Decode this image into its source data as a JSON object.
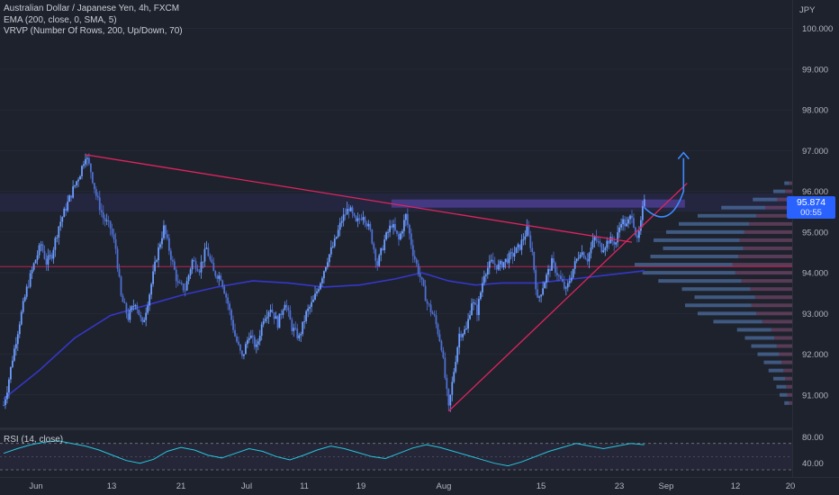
{
  "header": {
    "title": "Australian Dollar / Japanese Yen, 4h, FXCM",
    "indicator_ema": "EMA (200, close, 0, SMA, 5)",
    "indicator_vrvp": "VRVP (Number Of Rows, 200, Up/Down, 70)"
  },
  "price_scale": {
    "currency": "JPY",
    "last_price": "95.874",
    "countdown": "00:55"
  },
  "rsi_panel": {
    "label": "RSI (14, close)"
  },
  "colors": {
    "background": "#1e222d",
    "candles": "#5b8cff",
    "ema": "#3537c8",
    "trendlines": "#e0245e",
    "resistance_zone": "#6a4cc9",
    "rsi_line": "#26c6da",
    "forecast_arrow": "#3d8bff",
    "last_price_tag": "#2962ff"
  },
  "chart_data": [
    {
      "type": "candlestick",
      "title": "Australian Dollar / Japanese Yen, 4h, FXCM",
      "ylabel": "JPY",
      "ylim": [
        90.2,
        100.7
      ],
      "x_tick_labels": [
        "Jun",
        "13",
        "21",
        "Jul",
        "11",
        "19",
        "Aug",
        "15",
        "23",
        "Sep",
        "12",
        "20"
      ],
      "y_tick_labels": [
        "100.000",
        "99.000",
        "98.000",
        "97.000",
        "96.000",
        "95.000",
        "94.000",
        "93.000",
        "92.000",
        "91.000"
      ],
      "y_tick_values": [
        100,
        99,
        98,
        97,
        96,
        95,
        94,
        93,
        92,
        91
      ],
      "price_path": [
        {
          "t": 0,
          "p": 90.75
        },
        {
          "t": 2,
          "p": 91.15
        },
        {
          "t": 5,
          "p": 91.9
        },
        {
          "t": 9,
          "p": 92.8
        },
        {
          "t": 13,
          "p": 93.6
        },
        {
          "t": 17,
          "p": 94.2
        },
        {
          "t": 21,
          "p": 94.7
        },
        {
          "t": 24,
          "p": 94.25
        },
        {
          "t": 27,
          "p": 94.45
        },
        {
          "t": 31,
          "p": 95.15
        },
        {
          "t": 35,
          "p": 95.6
        },
        {
          "t": 39,
          "p": 96.05
        },
        {
          "t": 43,
          "p": 96.45
        },
        {
          "t": 46,
          "p": 96.9
        },
        {
          "t": 49,
          "p": 96.5
        },
        {
          "t": 52,
          "p": 95.9
        },
        {
          "t": 56,
          "p": 95.35
        },
        {
          "t": 60,
          "p": 95.1
        },
        {
          "t": 63,
          "p": 94.6
        },
        {
          "t": 66,
          "p": 93.4
        },
        {
          "t": 70,
          "p": 92.9
        },
        {
          "t": 74,
          "p": 93.3
        },
        {
          "t": 78,
          "p": 92.7
        },
        {
          "t": 82,
          "p": 93.5
        },
        {
          "t": 86,
          "p": 94.4
        },
        {
          "t": 90,
          "p": 95.1
        },
        {
          "t": 94,
          "p": 94.4
        },
        {
          "t": 98,
          "p": 93.7
        },
        {
          "t": 102,
          "p": 93.6
        },
        {
          "t": 106,
          "p": 94.3
        },
        {
          "t": 110,
          "p": 94.1
        },
        {
          "t": 114,
          "p": 94.6
        },
        {
          "t": 118,
          "p": 94.0
        },
        {
          "t": 122,
          "p": 93.9
        },
        {
          "t": 126,
          "p": 93.25
        },
        {
          "t": 130,
          "p": 92.45
        },
        {
          "t": 134,
          "p": 91.9
        },
        {
          "t": 138,
          "p": 92.5
        },
        {
          "t": 142,
          "p": 92.15
        },
        {
          "t": 146,
          "p": 92.9
        },
        {
          "t": 150,
          "p": 93.15
        },
        {
          "t": 154,
          "p": 92.75
        },
        {
          "t": 158,
          "p": 93.3
        },
        {
          "t": 162,
          "p": 92.65
        },
        {
          "t": 166,
          "p": 92.4
        },
        {
          "t": 170,
          "p": 93.0
        },
        {
          "t": 174,
          "p": 93.3
        },
        {
          "t": 178,
          "p": 93.8
        },
        {
          "t": 182,
          "p": 94.35
        },
        {
          "t": 186,
          "p": 94.75
        },
        {
          "t": 190,
          "p": 95.3
        },
        {
          "t": 194,
          "p": 95.6
        },
        {
          "t": 198,
          "p": 95.2
        },
        {
          "t": 202,
          "p": 95.45
        },
        {
          "t": 206,
          "p": 95.0
        },
        {
          "t": 210,
          "p": 94.2
        },
        {
          "t": 214,
          "p": 94.8
        },
        {
          "t": 218,
          "p": 95.2
        },
        {
          "t": 222,
          "p": 94.8
        },
        {
          "t": 226,
          "p": 95.4
        },
        {
          "t": 230,
          "p": 94.5
        },
        {
          "t": 234,
          "p": 93.9
        },
        {
          "t": 238,
          "p": 93.25
        },
        {
          "t": 242,
          "p": 92.9
        },
        {
          "t": 246,
          "p": 92.2
        },
        {
          "t": 250,
          "p": 90.65
        },
        {
          "t": 253,
          "p": 91.6
        },
        {
          "t": 256,
          "p": 92.5
        },
        {
          "t": 260,
          "p": 92.6
        },
        {
          "t": 263,
          "p": 93.3
        },
        {
          "t": 266,
          "p": 93.05
        },
        {
          "t": 270,
          "p": 94.0
        },
        {
          "t": 274,
          "p": 94.25
        },
        {
          "t": 278,
          "p": 94.15
        },
        {
          "t": 282,
          "p": 94.3
        },
        {
          "t": 286,
          "p": 94.45
        },
        {
          "t": 290,
          "p": 94.65
        },
        {
          "t": 294,
          "p": 95.05
        },
        {
          "t": 297,
          "p": 94.5
        },
        {
          "t": 300,
          "p": 93.3
        },
        {
          "t": 304,
          "p": 93.8
        },
        {
          "t": 308,
          "p": 94.25
        },
        {
          "t": 312,
          "p": 93.9
        },
        {
          "t": 316,
          "p": 93.55
        },
        {
          "t": 320,
          "p": 94.1
        },
        {
          "t": 324,
          "p": 94.55
        },
        {
          "t": 328,
          "p": 94.35
        },
        {
          "t": 332,
          "p": 94.85
        },
        {
          "t": 336,
          "p": 94.6
        },
        {
          "t": 340,
          "p": 94.8
        },
        {
          "t": 344,
          "p": 94.75
        },
        {
          "t": 347,
          "p": 95.3
        },
        {
          "t": 350,
          "p": 95.15
        },
        {
          "t": 353,
          "p": 95.45
        },
        {
          "t": 356,
          "p": 94.75
        },
        {
          "t": 358,
          "p": 95.2
        },
        {
          "t": 360,
          "p": 95.874
        }
      ],
      "ema200": [
        {
          "t": 0,
          "p": 90.9
        },
        {
          "t": 20,
          "p": 91.6
        },
        {
          "t": 40,
          "p": 92.4
        },
        {
          "t": 60,
          "p": 92.95
        },
        {
          "t": 80,
          "p": 93.2
        },
        {
          "t": 100,
          "p": 93.45
        },
        {
          "t": 120,
          "p": 93.65
        },
        {
          "t": 140,
          "p": 93.8
        },
        {
          "t": 160,
          "p": 93.75
        },
        {
          "t": 180,
          "p": 93.65
        },
        {
          "t": 200,
          "p": 93.7
        },
        {
          "t": 220,
          "p": 93.85
        },
        {
          "t": 235,
          "p": 94.0
        },
        {
          "t": 250,
          "p": 93.8
        },
        {
          "t": 265,
          "p": 93.7
        },
        {
          "t": 280,
          "p": 93.75
        },
        {
          "t": 300,
          "p": 93.75
        },
        {
          "t": 320,
          "p": 93.85
        },
        {
          "t": 340,
          "p": 93.95
        },
        {
          "t": 360,
          "p": 94.05
        }
      ],
      "horizontal_level": 94.15,
      "resistance_zone": [
        95.6,
        95.8
      ],
      "descending_trendline": [
        {
          "t": 46,
          "p": 96.9
        },
        {
          "t": 353,
          "p": 94.75
        }
      ],
      "ascending_trendline": [
        {
          "t": 250,
          "p": 90.6
        },
        {
          "t": 384,
          "p": 96.2
        }
      ],
      "forecast_path": [
        {
          "t": 360,
          "p": 95.6
        },
        {
          "t": 374,
          "p": 95.35
        },
        {
          "t": 382,
          "p": 96.0
        },
        {
          "t": 382,
          "p": 96.95
        }
      ],
      "volume_profile": [
        {
          "price": 96.2,
          "vol": 0.05
        },
        {
          "price": 96.0,
          "vol": 0.12
        },
        {
          "price": 95.8,
          "vol": 0.25
        },
        {
          "price": 95.6,
          "vol": 0.45
        },
        {
          "price": 95.4,
          "vol": 0.6
        },
        {
          "price": 95.2,
          "vol": 0.72
        },
        {
          "price": 95.0,
          "vol": 0.8
        },
        {
          "price": 94.8,
          "vol": 0.88
        },
        {
          "price": 94.6,
          "vol": 0.82
        },
        {
          "price": 94.4,
          "vol": 0.9
        },
        {
          "price": 94.2,
          "vol": 1.0
        },
        {
          "price": 94.0,
          "vol": 0.95
        },
        {
          "price": 93.8,
          "vol": 0.85
        },
        {
          "price": 93.6,
          "vol": 0.7
        },
        {
          "price": 93.4,
          "vol": 0.62
        },
        {
          "price": 93.2,
          "vol": 0.68
        },
        {
          "price": 93.0,
          "vol": 0.6
        },
        {
          "price": 92.8,
          "vol": 0.5
        },
        {
          "price": 92.6,
          "vol": 0.35
        },
        {
          "price": 92.4,
          "vol": 0.3
        },
        {
          "price": 92.2,
          "vol": 0.26
        },
        {
          "price": 92.0,
          "vol": 0.22
        },
        {
          "price": 91.8,
          "vol": 0.18
        },
        {
          "price": 91.6,
          "vol": 0.15
        },
        {
          "price": 91.4,
          "vol": 0.12
        },
        {
          "price": 91.2,
          "vol": 0.1
        },
        {
          "price": 91.0,
          "vol": 0.08
        },
        {
          "price": 90.8,
          "vol": 0.05
        }
      ]
    },
    {
      "type": "line",
      "title": "RSI (14, close)",
      "ylim": [
        30,
        90
      ],
      "y_tick_labels": [
        "80.00",
        "40.00"
      ],
      "y_tick_values": [
        80,
        40
      ],
      "band": [
        70,
        30
      ],
      "series": [
        {
          "values": [
            55,
            62,
            68,
            72,
            74,
            70,
            66,
            60,
            52,
            44,
            40,
            46,
            58,
            64,
            60,
            52,
            48,
            55,
            62,
            58,
            50,
            45,
            52,
            60,
            66,
            62,
            56,
            50,
            47,
            55,
            63,
            68,
            64,
            58,
            52,
            46,
            40,
            36,
            42,
            50,
            58,
            64,
            70,
            66,
            62,
            66,
            70,
            68
          ]
        }
      ]
    }
  ]
}
